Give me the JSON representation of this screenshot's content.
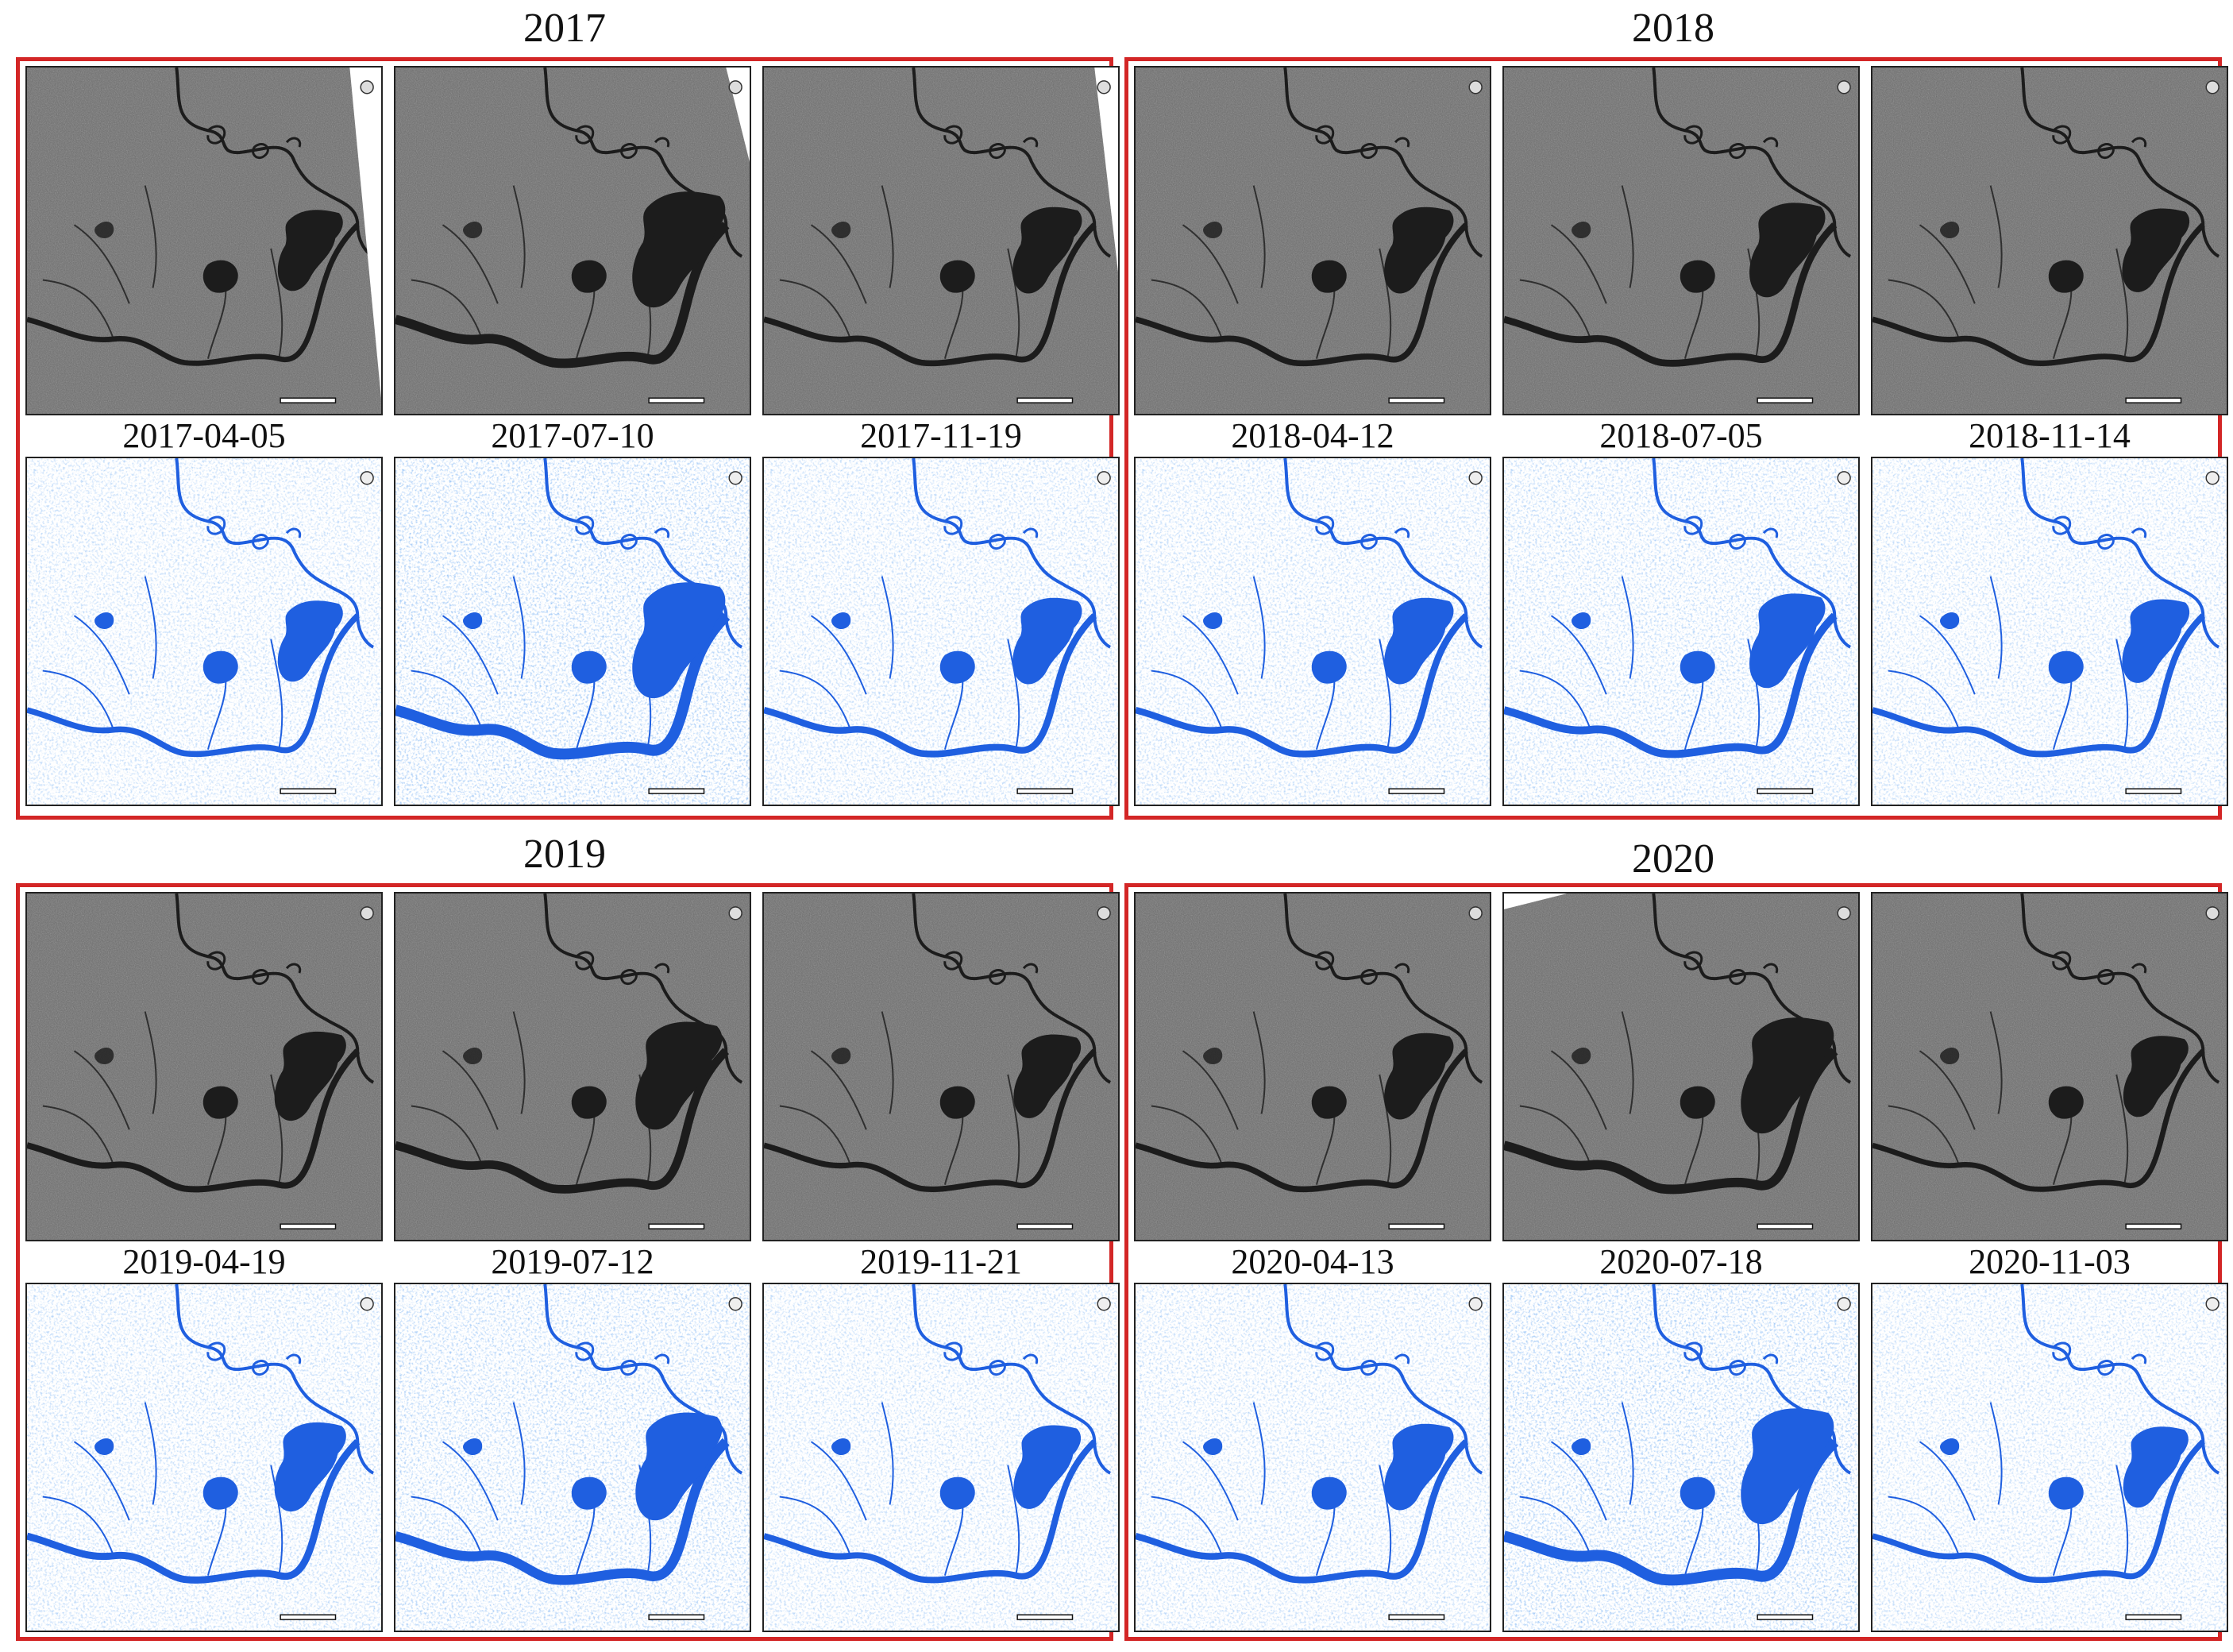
{
  "figure": {
    "groups": [
      {
        "year": "2017",
        "dates": [
          "2017-04-05",
          "2017-07-10",
          "2017-11-19"
        ],
        "flood_level": [
          0.35,
          1.0,
          0.45
        ]
      },
      {
        "year": "2018",
        "dates": [
          "2018-04-12",
          "2018-07-05",
          "2018-11-14"
        ],
        "flood_level": [
          0.45,
          0.6,
          0.4
        ]
      },
      {
        "year": "2019",
        "dates": [
          "2019-04-19",
          "2019-07-12",
          "2019-11-21"
        ],
        "flood_level": [
          0.5,
          0.85,
          0.4
        ]
      },
      {
        "year": "2020",
        "dates": [
          "2020-04-13",
          "2020-07-18",
          "2020-11-03"
        ],
        "flood_level": [
          0.45,
          1.0,
          0.35
        ]
      }
    ],
    "colors": {
      "group_border": "#d32626",
      "water": "#1f5fe0",
      "sar_background": "#6a6a6a",
      "sar_water": "#1c1c1c"
    }
  }
}
